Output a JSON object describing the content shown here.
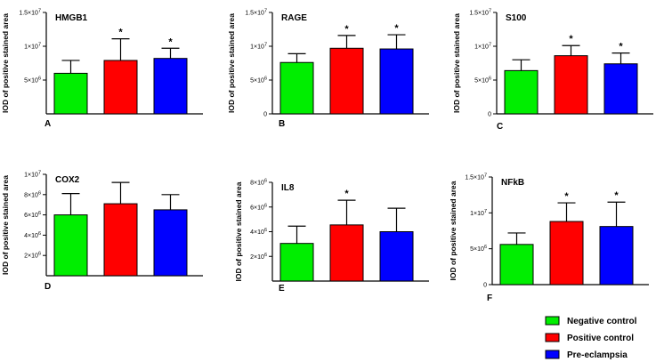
{
  "colors": {
    "negative": "#00ee00",
    "positive": "#ff0000",
    "preeclampsia": "#0000ff",
    "axis": "#000000"
  },
  "legend": {
    "items": [
      {
        "key": "negative",
        "label": "Negative control"
      },
      {
        "key": "positive",
        "label": "Positive control"
      },
      {
        "key": "preeclampsia",
        "label": "Pre-eclampsia"
      }
    ]
  },
  "chart_data": [
    {
      "type": "bar",
      "panel": "A",
      "title": "HMGB1",
      "ylabel": "IOD of positive stained area",
      "categories": [
        "Negative control",
        "Positive control",
        "Pre-eclampsia"
      ],
      "values": [
        6.0,
        7.9,
        8.2
      ],
      "errors": [
        1.9,
        3.2,
        1.5
      ],
      "significance": [
        "",
        "*",
        "*"
      ],
      "ylim": [
        0,
        15
      ],
      "ticks": [
        {
          "v": 5,
          "m": "5",
          "e": "6"
        },
        {
          "v": 10,
          "m": "1",
          "e": "7"
        },
        {
          "v": 15,
          "m": "1.5",
          "e": "7"
        }
      ],
      "scale_note": "values in units of 10^6"
    },
    {
      "type": "bar",
      "panel": "B",
      "title": "RAGE",
      "ylabel": "IOD of positive stained area",
      "categories": [
        "Negative control",
        "Positive control",
        "Pre-eclampsia"
      ],
      "values": [
        7.6,
        9.7,
        9.6
      ],
      "errors": [
        1.3,
        1.9,
        2.1
      ],
      "significance": [
        "",
        "*",
        "*"
      ],
      "ylim": [
        0,
        15
      ],
      "ticks": [
        {
          "v": 0,
          "m": "0",
          "e": ""
        },
        {
          "v": 5,
          "m": "5",
          "e": "6"
        },
        {
          "v": 10,
          "m": "1",
          "e": "7"
        },
        {
          "v": 15,
          "m": "1.5",
          "e": "7"
        }
      ],
      "scale_note": "values in units of 10^6"
    },
    {
      "type": "bar",
      "panel": "C",
      "title": "S100",
      "ylabel": "IOD of positive stained area",
      "categories": [
        "Negative control",
        "Positive control",
        "Pre-eclampsia"
      ],
      "values": [
        6.4,
        8.6,
        7.4
      ],
      "errors": [
        1.6,
        1.5,
        1.6
      ],
      "significance": [
        "",
        "*",
        "*"
      ],
      "ylim": [
        0,
        15
      ],
      "ticks": [
        {
          "v": 0,
          "m": "0",
          "e": ""
        },
        {
          "v": 5,
          "m": "5",
          "e": "6"
        },
        {
          "v": 10,
          "m": "1",
          "e": "7"
        },
        {
          "v": 15,
          "m": "1.5",
          "e": "7"
        }
      ],
      "scale_note": "values in units of 10^6"
    },
    {
      "type": "bar",
      "panel": "D",
      "title": "COX2",
      "ylabel": "IOD of positive stained area",
      "categories": [
        "Negative control",
        "Positive control",
        "Pre-eclampsia"
      ],
      "values": [
        6.0,
        7.1,
        6.5
      ],
      "errors": [
        2.1,
        2.1,
        1.5
      ],
      "significance": [
        "",
        "",
        ""
      ],
      "ylim": [
        0,
        10
      ],
      "ticks": [
        {
          "v": 2,
          "m": "2",
          "e": "6"
        },
        {
          "v": 4,
          "m": "4",
          "e": "6"
        },
        {
          "v": 6,
          "m": "6",
          "e": "6"
        },
        {
          "v": 8,
          "m": "8",
          "e": "6"
        },
        {
          "v": 10,
          "m": "1",
          "e": "7"
        }
      ],
      "scale_note": "values in units of 10^6"
    },
    {
      "type": "bar",
      "panel": "E",
      "title": "IL8",
      "ylabel": "IOD of positive stained area",
      "categories": [
        "Negative control",
        "Positive control",
        "Pre-eclampsia"
      ],
      "values": [
        3.05,
        4.55,
        4.0
      ],
      "errors": [
        1.4,
        2.0,
        1.9
      ],
      "significance": [
        "",
        "*",
        ""
      ],
      "ylim": [
        0,
        8
      ],
      "ticks": [
        {
          "v": 2,
          "m": "2",
          "e": "6"
        },
        {
          "v": 4,
          "m": "4",
          "e": "6"
        },
        {
          "v": 6,
          "m": "6",
          "e": "6"
        },
        {
          "v": 8,
          "m": "8",
          "e": "6"
        }
      ],
      "scale_note": "values in units of 10^6"
    },
    {
      "type": "bar",
      "panel": "F",
      "title": "NFkB",
      "ylabel": "IOD of positive stained area",
      "categories": [
        "Negative control",
        "Positive control",
        "Pre-eclampsia"
      ],
      "values": [
        5.6,
        8.8,
        8.1
      ],
      "errors": [
        1.6,
        2.6,
        3.4
      ],
      "significance": [
        "",
        "*",
        "*"
      ],
      "ylim": [
        0,
        15
      ],
      "ticks": [
        {
          "v": 0,
          "m": "0",
          "e": ""
        },
        {
          "v": 5,
          "m": "5",
          "e": "6"
        },
        {
          "v": 10,
          "m": "1",
          "e": "7"
        },
        {
          "v": 15,
          "m": "1.5",
          "e": "7"
        }
      ],
      "scale_note": "values in units of 10^6"
    }
  ]
}
